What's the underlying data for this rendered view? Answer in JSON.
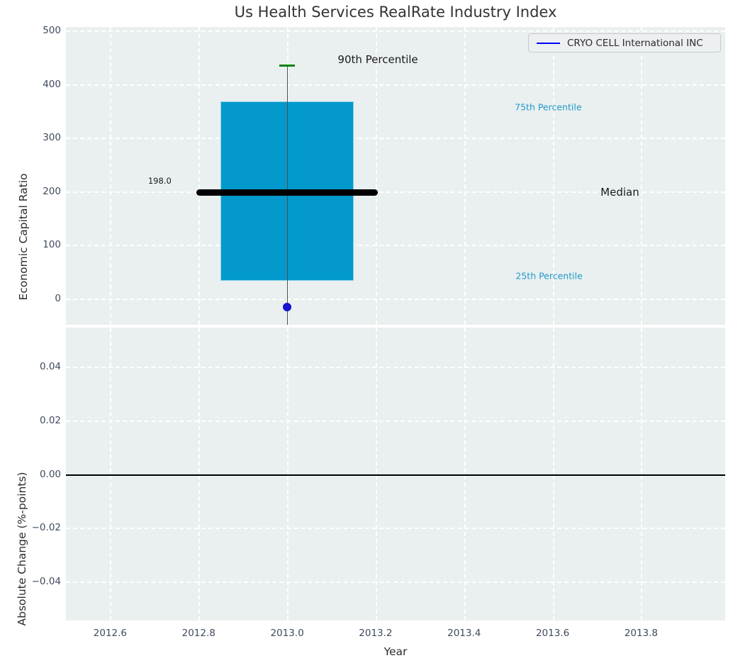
{
  "title": "Us Health Services RealRate Industry Index",
  "legend": {
    "label": "CRYO CELL International INC",
    "line_color": "#0000ff"
  },
  "colors": {
    "figure_bg": "#ffffff",
    "axes_bg": "#eaeff0",
    "grid": "#ffffff",
    "tick_text": "#3e4b5e",
    "title_text": "#333333",
    "box_fill": "#0499cc",
    "median_line": "#000000",
    "whisker": "#4f4f4f",
    "cap_90th": "#0e830e",
    "company_dot": "#1515cd",
    "percentile_text": "#1f9ac8",
    "zero_line": "#000000"
  },
  "chart_data": {
    "type": "boxplot",
    "title": "Us Health Services RealRate Industry Index",
    "xlabel": "Year",
    "x_axis": {
      "label": "Year",
      "xlim": [
        2012.5,
        2013.99
      ],
      "ticks": [
        {
          "v": 2012.6,
          "label": "2012.6"
        },
        {
          "v": 2012.8,
          "label": "2012.8"
        },
        {
          "v": 2013.0,
          "label": "2013.0"
        },
        {
          "v": 2013.2,
          "label": "2013.2"
        },
        {
          "v": 2013.4,
          "label": "2013.4"
        },
        {
          "v": 2013.6,
          "label": "2013.6"
        },
        {
          "v": 2013.8,
          "label": "2013.8"
        }
      ]
    },
    "top_panel": {
      "ylabel": "Economic Capital Ratio",
      "ylim": [
        -49,
        507
      ],
      "yticks": [
        {
          "v": 0,
          "label": "0"
        },
        {
          "v": 100,
          "label": "100"
        },
        {
          "v": 200,
          "label": "200"
        },
        {
          "v": 300,
          "label": "300"
        },
        {
          "v": 400,
          "label": "400"
        },
        {
          "v": 500,
          "label": "500"
        }
      ],
      "grid": true,
      "box": {
        "x": 2013.0,
        "p90": 435,
        "p75": 368,
        "median": 198,
        "p25": 33,
        "median_label": "198.0",
        "box_width_years": 0.302,
        "median_line_width_years": 0.41,
        "cap_width_years": 0.036,
        "whisker_clipped_below_axis": true
      },
      "company_point": {
        "x": 2013.0,
        "y": -16
      },
      "annotations": [
        {
          "text": "90th Percentile",
          "x": 2013.205,
          "y": 446,
          "color": "#1a1a1a",
          "size": 15
        },
        {
          "text": "75th Percentile",
          "x": 2013.59,
          "y": 357,
          "color": "#1f9ac8",
          "size": 12.5
        },
        {
          "text": "Median",
          "x": 2013.752,
          "y": 199,
          "color": "#1a1a1a",
          "size": 15
        },
        {
          "text": "25th Percentile",
          "x": 2013.592,
          "y": 42,
          "color": "#1f9ac8",
          "size": 12.5
        },
        {
          "text": "198.0",
          "x": 2012.712,
          "y": 220,
          "color": "#1a1a1a",
          "size": 11.5
        }
      ]
    },
    "bottom_panel": {
      "ylabel": "Absolute Change (%-points)",
      "ylim": [
        -0.0545,
        0.0545
      ],
      "yticks": [
        {
          "v": 0.04,
          "label": "0.04"
        },
        {
          "v": 0.02,
          "label": "0.02"
        },
        {
          "v": 0.0,
          "label": "0.00"
        },
        {
          "v": -0.02,
          "label": "−0.02"
        },
        {
          "v": -0.04,
          "label": "−0.04"
        }
      ],
      "grid": true,
      "zero_line": 0.0,
      "series": []
    }
  }
}
